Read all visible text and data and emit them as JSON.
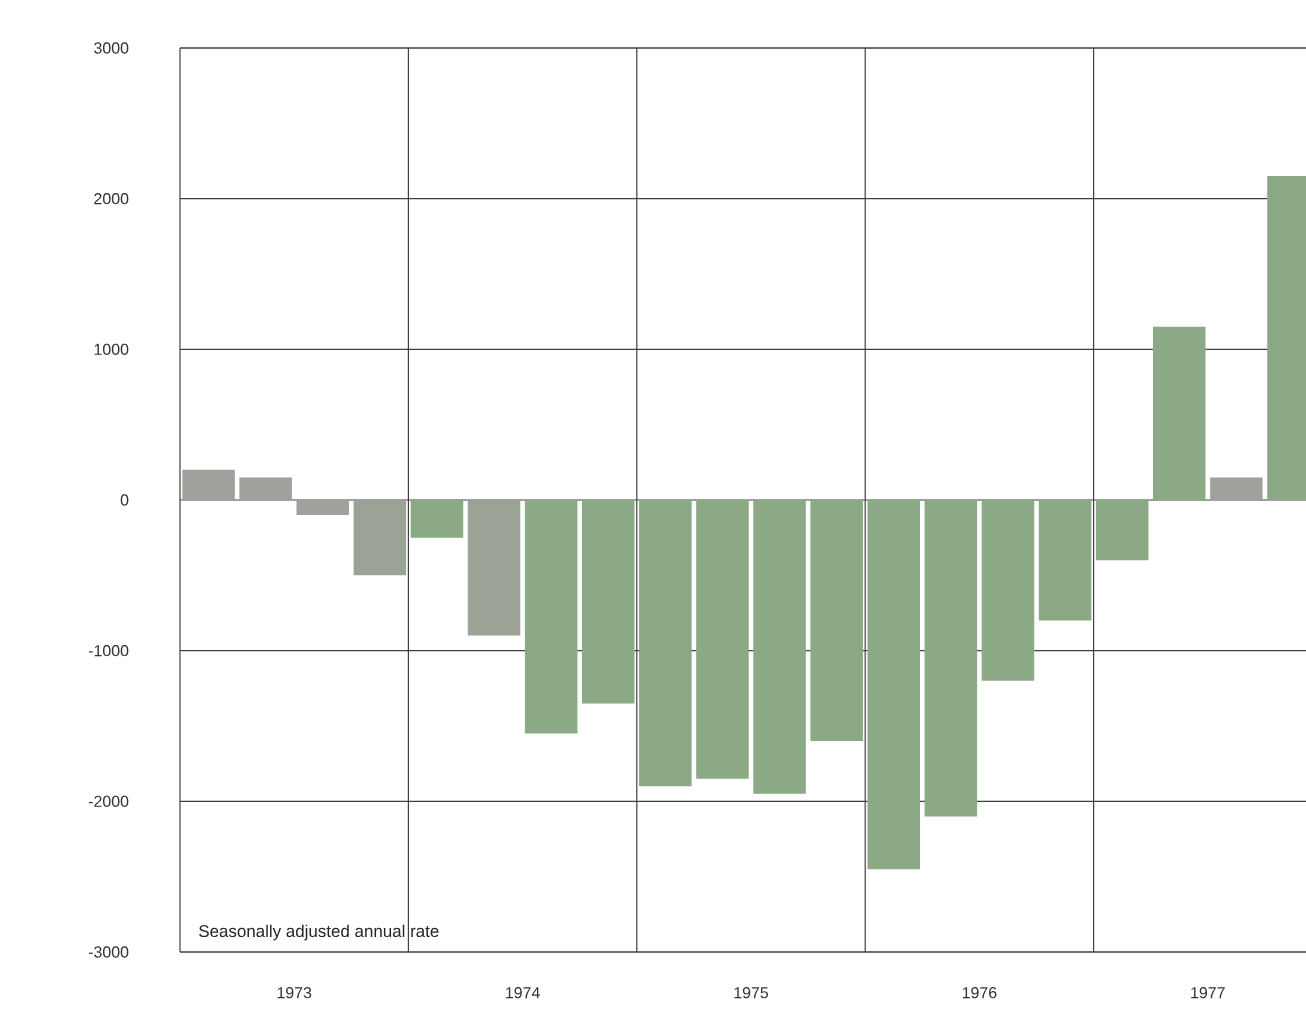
{
  "chart_data": {
    "type": "bar",
    "x": [
      1973.125,
      1973.375,
      1973.625,
      1973.875,
      1974.125,
      1974.375,
      1974.625,
      1974.875,
      1975.125,
      1975.375,
      1975.625,
      1975.875,
      1976.125,
      1976.375,
      1976.625,
      1976.875,
      1977.125,
      1977.375,
      1977.625,
      1977.875
    ],
    "values": [
      200,
      150,
      -100,
      -500,
      -250,
      -900,
      -1550,
      -1350,
      -1900,
      -1850,
      -1950,
      -1600,
      -2450,
      -2100,
      -1200,
      -800,
      -400,
      1150,
      150,
      2150
    ],
    "colors": [
      "#9ea19c",
      "#9ea19c",
      "#9ea19c",
      "#9aa396",
      "#8ba985",
      "#9aa396",
      "#8ba985",
      "#8ba985",
      "#8ba985",
      "#8ba985",
      "#8ba985",
      "#8ba985",
      "#8ba985",
      "#8ba985",
      "#8ba985",
      "#8ba985",
      "#8ba985",
      "#8ba985",
      "#9ea19c",
      "#8ba985"
    ],
    "xlim": [
      1973,
      1977.93
    ],
    "xticks": [
      {
        "value": 1973.5,
        "label": "1973"
      },
      {
        "value": 1974.5,
        "label": "1974"
      },
      {
        "value": 1975.5,
        "label": "1975"
      },
      {
        "value": 1976.5,
        "label": "1976"
      },
      {
        "value": 1977.5,
        "label": "1977"
      }
    ],
    "ylim": [
      -3000,
      3000
    ],
    "yticks": [
      -3000,
      -2000,
      -1000,
      0,
      1000,
      2000,
      3000
    ],
    "grid": "y",
    "ref_lines": [
      {
        "axis": "x",
        "value": 1974
      },
      {
        "axis": "x",
        "value": 1975
      },
      {
        "axis": "x",
        "value": 1976
      },
      {
        "axis": "x",
        "value": 1977
      }
    ],
    "annotations": [
      "Seasonally adjusted annual rate"
    ]
  }
}
